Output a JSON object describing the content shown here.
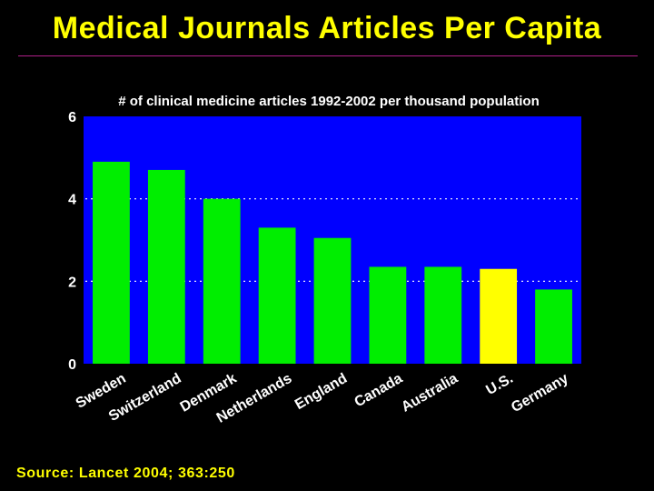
{
  "slide": {
    "title": "Medical Journals Articles Per Capita",
    "source": "Source: Lancet 2004; 363:250"
  },
  "colors": {
    "background": "#000000",
    "title": "#ffff00",
    "rule": "#b0208a",
    "plot_background": "#0000ff",
    "bar": "#00ee00",
    "bar_highlight": "#ffff00",
    "gridline": "#ffffff",
    "text": "#ffffff"
  },
  "chart_data": {
    "type": "bar",
    "title": "# of clinical medicine articles 1992-2002 per thousand population",
    "categories": [
      "Sweden",
      "Switzerland",
      "Denmark",
      "Netherlands",
      "England",
      "Canada",
      "Australia",
      "U.S.",
      "Germany"
    ],
    "values": [
      4.9,
      4.7,
      4.0,
      3.3,
      3.05,
      2.35,
      2.35,
      2.3,
      1.8
    ],
    "highlight": "U.S.",
    "xlabel": "",
    "ylabel": "",
    "ylim": [
      0,
      6
    ],
    "yticks": [
      0,
      2,
      4,
      6
    ],
    "gridlines": [
      2,
      4
    ],
    "grid": true,
    "legend": "none"
  }
}
